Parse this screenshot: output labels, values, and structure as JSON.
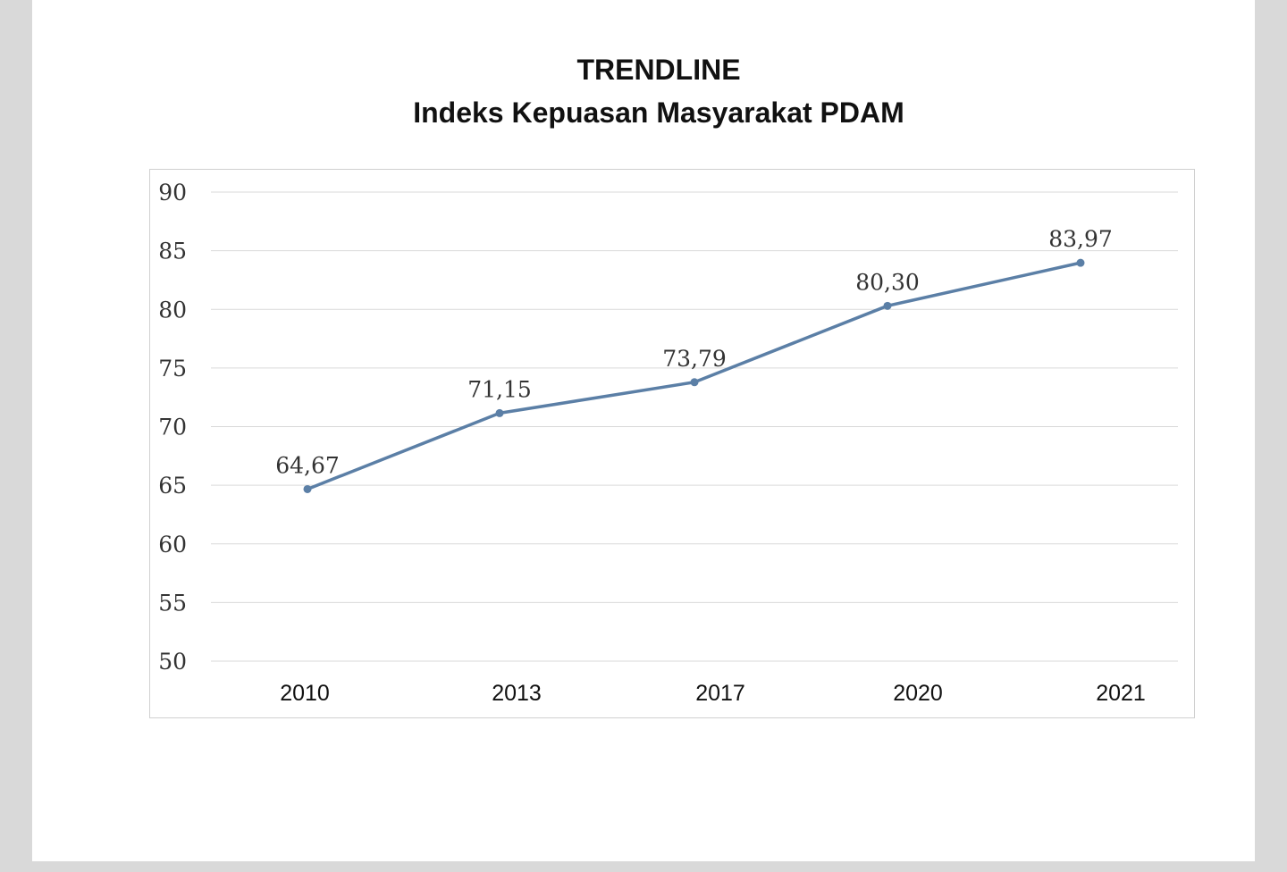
{
  "chart_data": {
    "type": "line",
    "title": "TRENDLINE",
    "subtitle": "Indeks Kepuasan Masyarakat PDAM",
    "categories": [
      "2010",
      "2013",
      "2017",
      "2020",
      "2021"
    ],
    "values": [
      64.67,
      71.15,
      73.79,
      80.3,
      83.97
    ],
    "data_labels": [
      "64,67",
      "71,15",
      "73,79",
      "80,30",
      "83,97"
    ],
    "ylim": [
      50,
      90
    ],
    "yticks": [
      "50",
      "55",
      "60",
      "65",
      "70",
      "75",
      "80",
      "85",
      "90"
    ],
    "xlabel": "",
    "ylabel": "",
    "grid": true,
    "line_color": "#5b7fa6"
  }
}
